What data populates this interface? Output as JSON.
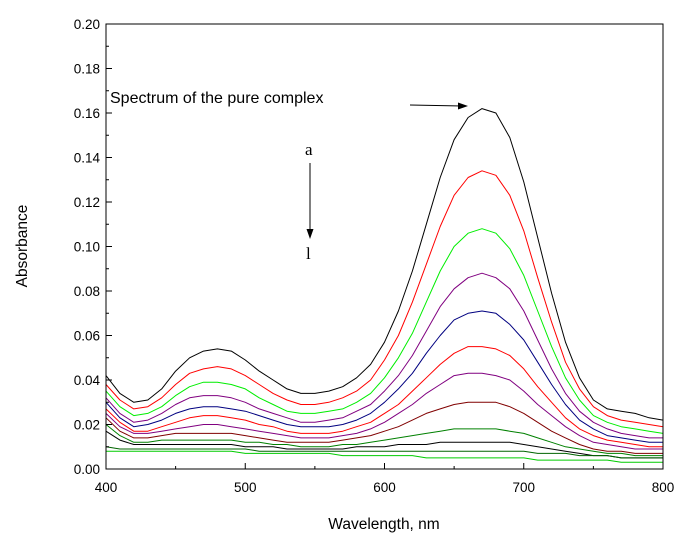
{
  "chart_data": {
    "type": "line",
    "title": "",
    "xlabel": "Wavelength, nm",
    "ylabel": "Absorbance",
    "xlim": [
      400,
      800
    ],
    "ylim": [
      0,
      0.2
    ],
    "x_ticks": [
      400,
      500,
      600,
      700,
      800
    ],
    "x_tick_labels": [
      "400",
      "500",
      "600",
      "700",
      "800"
    ],
    "y_ticks": [
      0,
      0.02,
      0.04,
      0.06,
      0.08,
      0.1,
      0.12,
      0.14,
      0.16,
      0.18,
      0.2
    ],
    "y_tick_labels": [
      "0.00",
      "0.02",
      "0.04",
      "0.06",
      "0.08",
      "0.10",
      "0.12",
      "0.14",
      "0.16",
      "0.18",
      "0.20"
    ],
    "grid": false,
    "annotations": {
      "pure_complex": "Spectrum of the pure complex",
      "series_start": "a",
      "series_end": "l"
    },
    "x": [
      400,
      410,
      420,
      430,
      440,
      450,
      460,
      470,
      480,
      490,
      500,
      510,
      520,
      530,
      540,
      550,
      560,
      570,
      580,
      590,
      600,
      610,
      620,
      630,
      640,
      650,
      660,
      670,
      680,
      690,
      700,
      710,
      720,
      730,
      740,
      750,
      760,
      770,
      780,
      790,
      800
    ],
    "series": [
      {
        "color": "#000000",
        "values": [
          0.042,
          0.034,
          0.03,
          0.031,
          0.036,
          0.044,
          0.05,
          0.053,
          0.054,
          0.053,
          0.049,
          0.044,
          0.04,
          0.036,
          0.034,
          0.034,
          0.035,
          0.037,
          0.041,
          0.047,
          0.057,
          0.071,
          0.089,
          0.11,
          0.131,
          0.148,
          0.158,
          0.162,
          0.16,
          0.149,
          0.129,
          0.104,
          0.079,
          0.057,
          0.041,
          0.031,
          0.027,
          0.026,
          0.025,
          0.023,
          0.022
        ]
      },
      {
        "color": "#ff0000",
        "values": [
          0.038,
          0.031,
          0.027,
          0.028,
          0.032,
          0.038,
          0.043,
          0.045,
          0.046,
          0.045,
          0.042,
          0.038,
          0.034,
          0.031,
          0.029,
          0.029,
          0.03,
          0.032,
          0.035,
          0.04,
          0.049,
          0.06,
          0.075,
          0.092,
          0.109,
          0.123,
          0.131,
          0.134,
          0.132,
          0.123,
          0.107,
          0.086,
          0.066,
          0.048,
          0.036,
          0.028,
          0.024,
          0.022,
          0.021,
          0.02,
          0.019
        ]
      },
      {
        "color": "#00ee00",
        "values": [
          0.035,
          0.028,
          0.024,
          0.025,
          0.028,
          0.033,
          0.037,
          0.039,
          0.039,
          0.038,
          0.036,
          0.032,
          0.029,
          0.026,
          0.025,
          0.025,
          0.026,
          0.027,
          0.03,
          0.034,
          0.041,
          0.05,
          0.061,
          0.075,
          0.089,
          0.1,
          0.106,
          0.108,
          0.106,
          0.099,
          0.087,
          0.071,
          0.055,
          0.041,
          0.031,
          0.024,
          0.021,
          0.019,
          0.018,
          0.017,
          0.016
        ]
      },
      {
        "color": "#800080",
        "values": [
          0.032,
          0.025,
          0.021,
          0.022,
          0.025,
          0.029,
          0.032,
          0.033,
          0.033,
          0.032,
          0.03,
          0.027,
          0.025,
          0.023,
          0.021,
          0.021,
          0.022,
          0.023,
          0.026,
          0.029,
          0.035,
          0.042,
          0.051,
          0.062,
          0.073,
          0.081,
          0.086,
          0.088,
          0.086,
          0.081,
          0.071,
          0.058,
          0.045,
          0.034,
          0.026,
          0.021,
          0.018,
          0.016,
          0.015,
          0.014,
          0.014
        ]
      },
      {
        "color": "#000080",
        "values": [
          0.03,
          0.023,
          0.019,
          0.02,
          0.022,
          0.025,
          0.027,
          0.028,
          0.028,
          0.027,
          0.026,
          0.024,
          0.022,
          0.02,
          0.019,
          0.019,
          0.019,
          0.02,
          0.022,
          0.025,
          0.03,
          0.036,
          0.043,
          0.052,
          0.06,
          0.067,
          0.07,
          0.071,
          0.07,
          0.065,
          0.058,
          0.048,
          0.038,
          0.029,
          0.022,
          0.018,
          0.015,
          0.014,
          0.013,
          0.012,
          0.012
        ]
      },
      {
        "color": "#ff0000",
        "values": [
          0.027,
          0.021,
          0.017,
          0.017,
          0.019,
          0.021,
          0.023,
          0.024,
          0.024,
          0.023,
          0.022,
          0.02,
          0.019,
          0.017,
          0.016,
          0.016,
          0.016,
          0.017,
          0.019,
          0.021,
          0.025,
          0.029,
          0.035,
          0.041,
          0.047,
          0.052,
          0.055,
          0.055,
          0.054,
          0.051,
          0.045,
          0.037,
          0.03,
          0.023,
          0.018,
          0.015,
          0.013,
          0.012,
          0.011,
          0.01,
          0.01
        ]
      },
      {
        "color": "#800080",
        "values": [
          0.025,
          0.019,
          0.016,
          0.016,
          0.017,
          0.018,
          0.019,
          0.02,
          0.02,
          0.019,
          0.018,
          0.017,
          0.016,
          0.015,
          0.014,
          0.014,
          0.014,
          0.015,
          0.016,
          0.018,
          0.021,
          0.025,
          0.029,
          0.034,
          0.038,
          0.042,
          0.043,
          0.043,
          0.042,
          0.04,
          0.035,
          0.029,
          0.024,
          0.019,
          0.015,
          0.012,
          0.011,
          0.01,
          0.009,
          0.009,
          0.009
        ]
      },
      {
        "color": "#800000",
        "values": [
          0.023,
          0.017,
          0.014,
          0.014,
          0.015,
          0.016,
          0.016,
          0.016,
          0.016,
          0.016,
          0.015,
          0.014,
          0.013,
          0.012,
          0.012,
          0.012,
          0.012,
          0.013,
          0.014,
          0.015,
          0.017,
          0.019,
          0.022,
          0.025,
          0.027,
          0.029,
          0.03,
          0.03,
          0.03,
          0.028,
          0.025,
          0.021,
          0.017,
          0.014,
          0.011,
          0.009,
          0.008,
          0.008,
          0.007,
          0.007,
          0.007
        ]
      },
      {
        "color": "#008000",
        "values": [
          0.02,
          0.015,
          0.012,
          0.012,
          0.013,
          0.013,
          0.013,
          0.013,
          0.013,
          0.013,
          0.012,
          0.012,
          0.011,
          0.011,
          0.01,
          0.01,
          0.01,
          0.011,
          0.011,
          0.012,
          0.013,
          0.014,
          0.015,
          0.016,
          0.017,
          0.018,
          0.018,
          0.018,
          0.018,
          0.017,
          0.016,
          0.014,
          0.012,
          0.01,
          0.009,
          0.008,
          0.007,
          0.007,
          0.006,
          0.006,
          0.006
        ]
      },
      {
        "color": "#000000",
        "values": [
          0.017,
          0.013,
          0.011,
          0.011,
          0.011,
          0.011,
          0.011,
          0.011,
          0.011,
          0.011,
          0.01,
          0.01,
          0.01,
          0.009,
          0.009,
          0.009,
          0.009,
          0.009,
          0.01,
          0.01,
          0.01,
          0.011,
          0.011,
          0.011,
          0.012,
          0.012,
          0.012,
          0.012,
          0.012,
          0.012,
          0.011,
          0.01,
          0.009,
          0.008,
          0.007,
          0.006,
          0.006,
          0.005,
          0.005,
          0.005,
          0.005
        ]
      },
      {
        "color": "#006400",
        "values": [
          0.01,
          0.009,
          0.009,
          0.009,
          0.009,
          0.009,
          0.009,
          0.009,
          0.009,
          0.009,
          0.009,
          0.008,
          0.008,
          0.008,
          0.008,
          0.008,
          0.008,
          0.008,
          0.008,
          0.008,
          0.008,
          0.008,
          0.008,
          0.008,
          0.008,
          0.008,
          0.008,
          0.008,
          0.008,
          0.008,
          0.008,
          0.007,
          0.007,
          0.007,
          0.006,
          0.006,
          0.006,
          0.005,
          0.005,
          0.005,
          0.005
        ]
      },
      {
        "color": "#00cc00",
        "values": [
          0.008,
          0.008,
          0.008,
          0.008,
          0.008,
          0.008,
          0.008,
          0.008,
          0.008,
          0.008,
          0.007,
          0.007,
          0.007,
          0.007,
          0.007,
          0.007,
          0.007,
          0.006,
          0.006,
          0.006,
          0.006,
          0.006,
          0.006,
          0.005,
          0.005,
          0.005,
          0.005,
          0.005,
          0.005,
          0.005,
          0.005,
          0.004,
          0.004,
          0.004,
          0.004,
          0.004,
          0.004,
          0.003,
          0.003,
          0.003,
          0.003
        ]
      }
    ]
  }
}
